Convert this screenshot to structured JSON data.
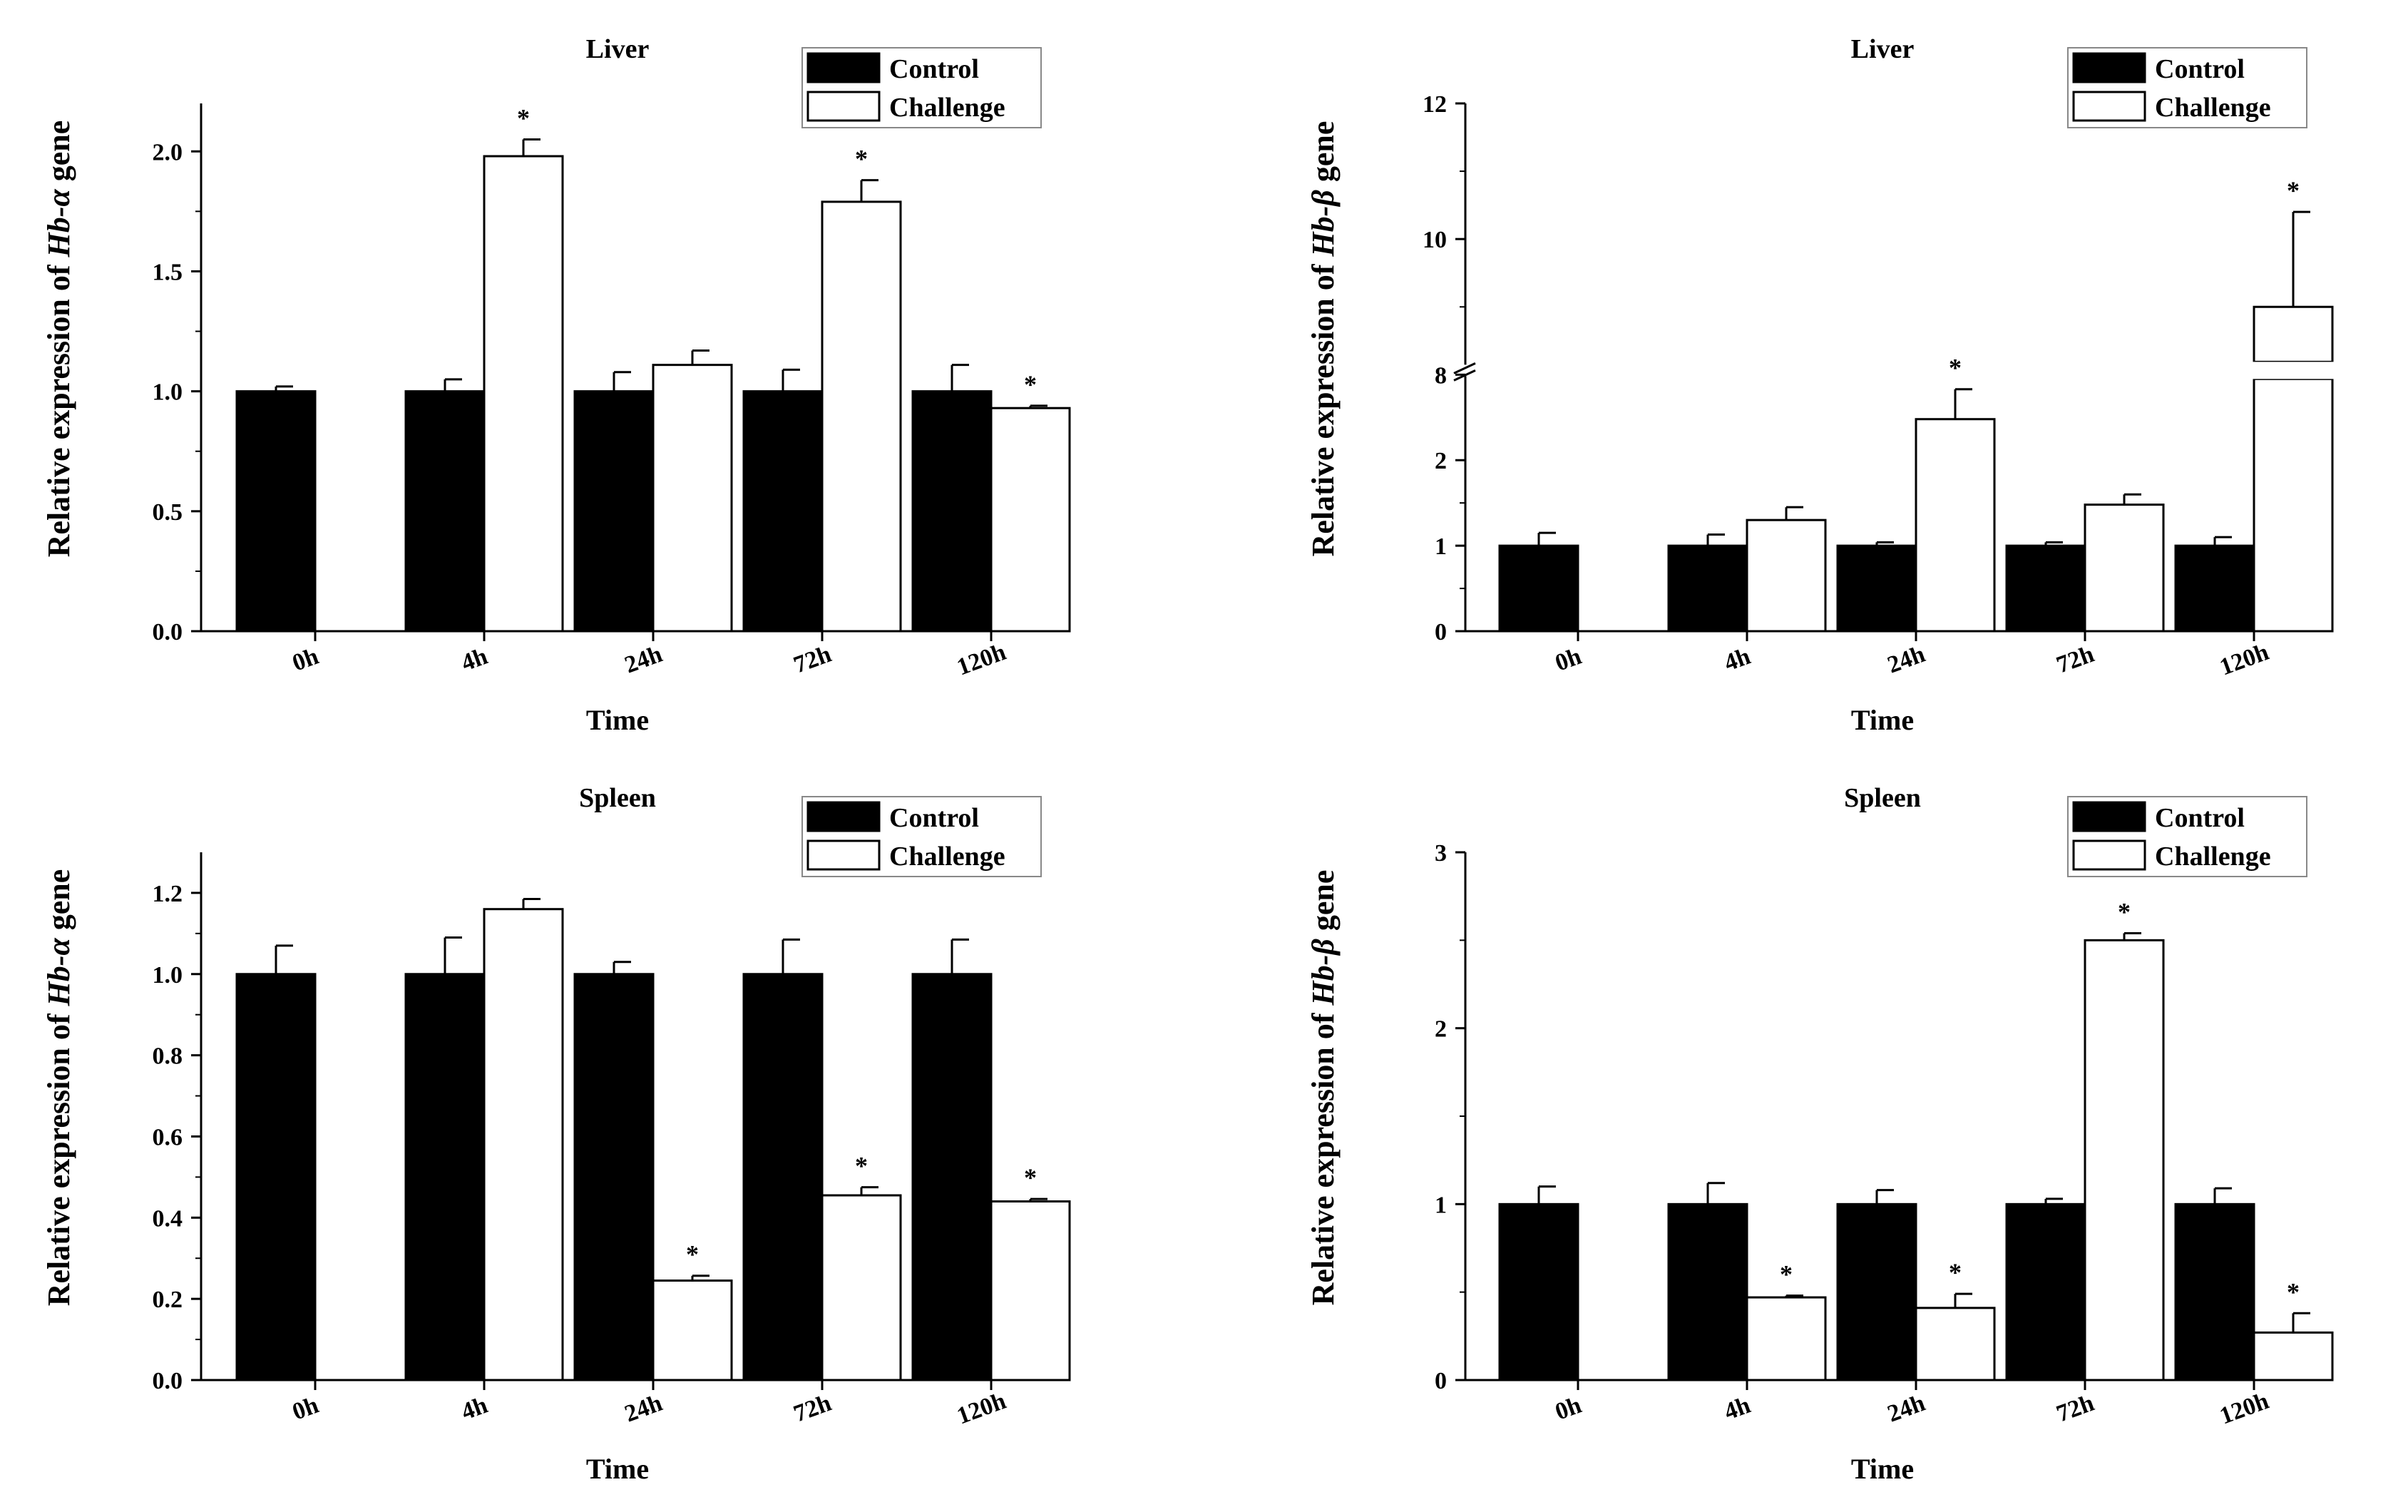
{
  "legend": {
    "control": "Control",
    "challenge": "Challenge"
  },
  "colors": {
    "control": "#000000",
    "challenge": "#ffffff",
    "axis": "#000000"
  },
  "chart_data": [
    {
      "type": "bar",
      "title": "Liver",
      "ylabel_prefix": "Relative expression of ",
      "ylabel_gene": "Hb-α",
      "ylabel_suffix": " gene",
      "xlabel": "Time",
      "categories": [
        "0h",
        "4h",
        "24h",
        "72h",
        "120h"
      ],
      "ylim": [
        0,
        2.2
      ],
      "yticks": [
        0.0,
        0.5,
        1.0,
        1.5,
        2.0
      ],
      "ytick_labels": [
        "0.0",
        "0.5",
        "1.0",
        "1.5",
        "2.0"
      ],
      "legend_position": "top-right",
      "series": [
        {
          "name": "Control",
          "values": [
            1.0,
            1.0,
            1.0,
            1.0,
            1.0
          ],
          "errors": [
            0.02,
            0.05,
            0.08,
            0.09,
            0.11
          ],
          "significant": [
            false,
            false,
            false,
            false,
            false
          ]
        },
        {
          "name": "Challenge",
          "values": [
            null,
            1.98,
            1.11,
            1.79,
            0.93
          ],
          "errors": [
            null,
            0.07,
            0.06,
            0.09,
            0.01
          ],
          "significant": [
            false,
            true,
            false,
            true,
            true
          ]
        }
      ]
    },
    {
      "type": "bar",
      "title": "Liver",
      "ylabel_prefix": "Relative expression of ",
      "ylabel_gene": "Hb-β",
      "ylabel_suffix": " gene",
      "xlabel": "Time",
      "categories": [
        "0h",
        "4h",
        "24h",
        "72h",
        "120h"
      ],
      "ylim": [
        0,
        12
      ],
      "axis_break": [
        3,
        8
      ],
      "yticks": [
        0,
        1,
        2,
        8,
        10,
        12
      ],
      "ytick_labels": [
        "0",
        "1",
        "2",
        "8",
        "10",
        "12"
      ],
      "legend_position": "top-right",
      "series": [
        {
          "name": "Control",
          "values": [
            1.0,
            1.0,
            1.0,
            1.0,
            1.0
          ],
          "errors": [
            0.15,
            0.13,
            0.04,
            0.04,
            0.1
          ],
          "significant": [
            false,
            false,
            false,
            false,
            false
          ]
        },
        {
          "name": "Challenge",
          "values": [
            null,
            1.3,
            2.48,
            1.48,
            9.0
          ],
          "errors": [
            null,
            0.15,
            0.35,
            0.12,
            1.4
          ],
          "significant": [
            false,
            false,
            true,
            false,
            true
          ]
        }
      ]
    },
    {
      "type": "bar",
      "title": "Spleen",
      "ylabel_prefix": "Relative expression of ",
      "ylabel_gene": "Hb-α",
      "ylabel_suffix": " gene",
      "xlabel": "Time",
      "categories": [
        "0h",
        "4h",
        "24h",
        "72h",
        "120h"
      ],
      "ylim": [
        0,
        1.3
      ],
      "yticks": [
        0.0,
        0.2,
        0.4,
        0.6,
        0.8,
        1.0,
        1.2
      ],
      "ytick_labels": [
        "0.0",
        "0.2",
        "0.4",
        "0.6",
        "0.8",
        "1.0",
        "1.2"
      ],
      "legend_position": "top-right",
      "series": [
        {
          "name": "Control",
          "values": [
            1.0,
            1.0,
            1.0,
            1.0,
            1.0
          ],
          "errors": [
            0.07,
            0.09,
            0.03,
            0.085,
            0.085
          ],
          "significant": [
            false,
            false,
            false,
            false,
            false
          ]
        },
        {
          "name": "Challenge",
          "values": [
            null,
            1.16,
            0.245,
            0.455,
            0.44
          ],
          "errors": [
            null,
            0.025,
            0.012,
            0.02,
            0.006
          ],
          "significant": [
            false,
            false,
            true,
            true,
            true
          ]
        }
      ]
    },
    {
      "type": "bar",
      "title": "Spleen",
      "ylabel_prefix": "Relative expression of ",
      "ylabel_gene": "Hb-β",
      "ylabel_suffix": " gene",
      "xlabel": "Time",
      "categories": [
        "0h",
        "4h",
        "24h",
        "72h",
        "120h"
      ],
      "ylim": [
        0,
        3
      ],
      "yticks": [
        0,
        1,
        2,
        3
      ],
      "ytick_labels": [
        "0",
        "1",
        "2",
        "3"
      ],
      "legend_position": "top-right",
      "series": [
        {
          "name": "Control",
          "values": [
            1.0,
            1.0,
            1.0,
            1.0,
            1.0
          ],
          "errors": [
            0.1,
            0.12,
            0.08,
            0.03,
            0.09
          ],
          "significant": [
            false,
            false,
            false,
            false,
            false
          ]
        },
        {
          "name": "Challenge",
          "values": [
            null,
            0.47,
            0.41,
            2.5,
            0.27
          ],
          "errors": [
            null,
            0.01,
            0.08,
            0.04,
            0.11
          ],
          "significant": [
            false,
            true,
            true,
            true,
            true
          ]
        }
      ]
    }
  ]
}
